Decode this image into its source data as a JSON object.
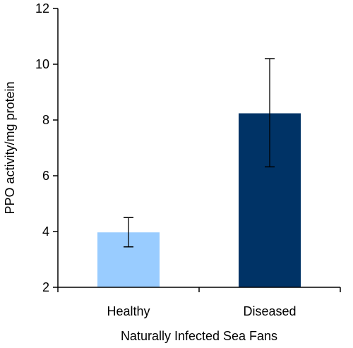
{
  "chart_data": {
    "type": "bar",
    "xlabel": "Naturally Infected Sea Fans",
    "ylabel": "PPO activity/mg protein",
    "categories": [
      "Healthy",
      "Diseased"
    ],
    "values": [
      3.97,
      8.24
    ],
    "error_low": [
      3.45,
      6.32
    ],
    "error_high": [
      4.5,
      10.2
    ],
    "ylim": [
      2,
      12
    ],
    "yticks": [
      "2",
      "4",
      "6",
      "8",
      "10",
      "12"
    ],
    "bar_colors": [
      "#99ccff",
      "#003366"
    ],
    "grid": false,
    "legend": "none"
  }
}
